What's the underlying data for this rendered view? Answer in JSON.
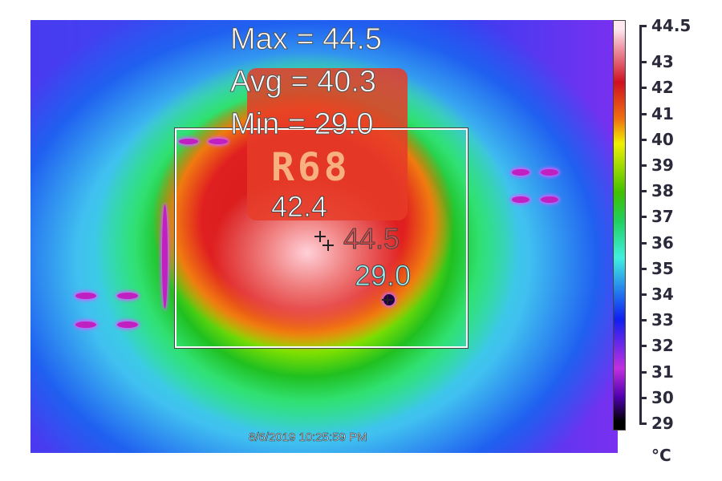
{
  "overlay": {
    "max_label": "Max = 44.5",
    "avg_label": "Avg = 40.3",
    "min_label": "Min = 29.0",
    "component_marking": "R68",
    "spots": [
      {
        "value": "42.4",
        "color": "#ffffff"
      },
      {
        "value": "44.5",
        "color": "#e04848"
      },
      {
        "value": "29.0",
        "color": "#a0f0f0"
      }
    ],
    "timestamp": "8/6/2019 10:25:59 PM"
  },
  "scale": {
    "max": 44.5,
    "min": 29,
    "ticks": [
      "44.5",
      "43",
      "42",
      "41",
      "40",
      "39",
      "38",
      "37",
      "36",
      "35",
      "34",
      "33",
      "32",
      "31",
      "30",
      "29"
    ],
    "unit": "°C"
  }
}
